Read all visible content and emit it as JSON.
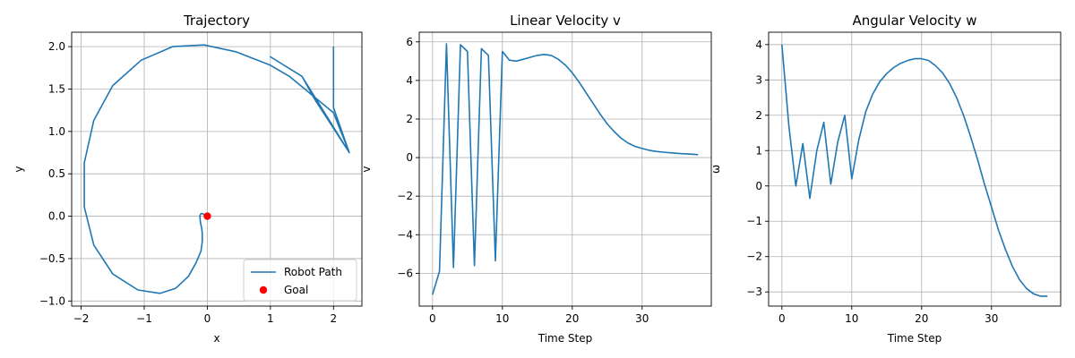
{
  "chart_data": [
    {
      "type": "line",
      "title": "Trajectory",
      "xlabel": "x",
      "ylabel": "y",
      "xlim": [
        -2.15,
        2.45
      ],
      "ylim": [
        -1.06,
        2.17
      ],
      "xticks": [
        -2,
        -1,
        0,
        1,
        2
      ],
      "yticks": [
        -1.0,
        -0.5,
        0.0,
        0.5,
        1.0,
        1.5,
        2.0
      ],
      "grid": true,
      "legend_position": "lower-right",
      "series": [
        {
          "name": "Robot Path",
          "color": "#1f77b4",
          "x": [
            2.0,
            2.0,
            2.25,
            1.5,
            1.0,
            1.5,
            1.7,
            2.25,
            2.0,
            1.3,
            1.0,
            0.45,
            -0.05,
            -0.55,
            -1.05,
            -1.5,
            -1.8,
            -1.95,
            -1.95,
            -1.8,
            -1.5,
            -1.1,
            -0.75,
            -0.5,
            -0.3,
            -0.18,
            -0.1,
            -0.08,
            -0.08,
            -0.09,
            -0.11,
            -0.12,
            -0.11,
            -0.1,
            -0.08,
            -0.05,
            -0.03,
            -0.01
          ],
          "y": [
            2.0,
            1.28,
            0.75,
            1.65,
            1.88,
            1.65,
            1.38,
            0.75,
            1.22,
            1.65,
            1.78,
            1.94,
            2.02,
            2.0,
            1.84,
            1.54,
            1.13,
            0.63,
            0.11,
            -0.34,
            -0.68,
            -0.87,
            -0.91,
            -0.85,
            -0.71,
            -0.55,
            -0.41,
            -0.3,
            -0.2,
            -0.14,
            -0.07,
            0.0,
            0.02,
            0.03,
            0.03,
            0.02,
            0.01,
            0.0
          ]
        },
        {
          "name": "Goal",
          "color": "#ff0000",
          "marker": "circle",
          "x": [
            0.0
          ],
          "y": [
            0.0
          ]
        }
      ]
    },
    {
      "type": "line",
      "title": "Linear Velocity v",
      "xlabel": "Time Step",
      "ylabel": "v",
      "xlim": [
        -1.9,
        39.9
      ],
      "ylim": [
        -7.7,
        6.5
      ],
      "xticks": [
        0,
        10,
        20,
        30
      ],
      "yticks": [
        -6,
        -4,
        -2,
        0,
        2,
        4,
        6
      ],
      "grid": true,
      "series": [
        {
          "color": "#1f77b4",
          "x": [
            0,
            1,
            2,
            3,
            4,
            5,
            6,
            7,
            8,
            9,
            10,
            11,
            12,
            13,
            14,
            15,
            16,
            17,
            18,
            19,
            20,
            21,
            22,
            23,
            24,
            25,
            26,
            27,
            28,
            29,
            30,
            31,
            32,
            33,
            34,
            35,
            36,
            37,
            38
          ],
          "y": [
            -7.1,
            -5.9,
            5.9,
            -5.7,
            5.85,
            5.5,
            -5.6,
            5.65,
            5.3,
            -5.35,
            5.5,
            5.05,
            5.0,
            5.1,
            5.2,
            5.3,
            5.35,
            5.3,
            5.1,
            4.8,
            4.4,
            3.9,
            3.35,
            2.8,
            2.25,
            1.75,
            1.35,
            1.0,
            0.75,
            0.58,
            0.47,
            0.38,
            0.32,
            0.28,
            0.25,
            0.22,
            0.2,
            0.18,
            0.15
          ]
        }
      ]
    },
    {
      "type": "line",
      "title": "Angular Velocity w",
      "xlabel": "Time Step",
      "ylabel": "ω",
      "xlim": [
        -1.9,
        39.9
      ],
      "ylim": [
        -3.4,
        4.35
      ],
      "xticks": [
        0,
        10,
        20,
        30
      ],
      "yticks": [
        -3,
        -2,
        -1,
        0,
        1,
        2,
        3,
        4
      ],
      "grid": true,
      "series": [
        {
          "color": "#1f77b4",
          "x": [
            0,
            1,
            2,
            3,
            4,
            5,
            6,
            7,
            8,
            9,
            10,
            11,
            12,
            13,
            14,
            15,
            16,
            17,
            18,
            19,
            20,
            21,
            22,
            23,
            24,
            25,
            26,
            27,
            28,
            29,
            30,
            31,
            32,
            33,
            34,
            35,
            36,
            37,
            38
          ],
          "y": [
            4.0,
            1.7,
            0.0,
            1.2,
            -0.35,
            1.0,
            1.8,
            0.05,
            1.25,
            2.0,
            0.2,
            1.3,
            2.1,
            2.6,
            2.95,
            3.18,
            3.35,
            3.47,
            3.55,
            3.6,
            3.6,
            3.55,
            3.4,
            3.2,
            2.9,
            2.5,
            2.0,
            1.4,
            0.75,
            0.05,
            -0.6,
            -1.25,
            -1.8,
            -2.28,
            -2.65,
            -2.9,
            -3.05,
            -3.12,
            -3.12
          ]
        }
      ]
    }
  ]
}
